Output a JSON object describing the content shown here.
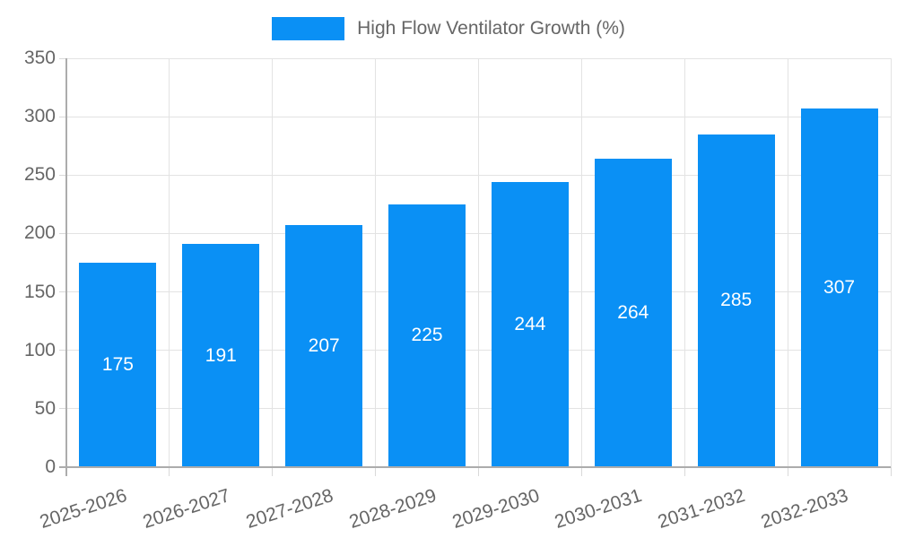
{
  "chart_data": {
    "type": "bar",
    "title": "High Flow Ventilator Growth (%)",
    "categories": [
      "2025-2026",
      "2026-2027",
      "2027-2028",
      "2028-2029",
      "2029-2030",
      "2030-2031",
      "2031-2032",
      "2032-2033"
    ],
    "series": [
      {
        "name": "High Flow Ventilator Growth (%)",
        "values": [
          175,
          191,
          207,
          225,
          244,
          264,
          285,
          307
        ]
      }
    ],
    "xlabel": "",
    "ylabel": "",
    "ylim": [
      0,
      350
    ],
    "yticks": [
      0,
      50,
      100,
      150,
      200,
      250,
      300,
      350
    ],
    "grid": true,
    "legend_position": "top-center",
    "value_labels_inside_bars": true
  },
  "colors": {
    "bar": "#0A90F5",
    "grid": "#E3E3E3",
    "axis": "#ACACAC",
    "tick": "#D9D9D9",
    "label": "#666666",
    "value_label": "#FFFFFF",
    "background": "#FFFFFF"
  }
}
